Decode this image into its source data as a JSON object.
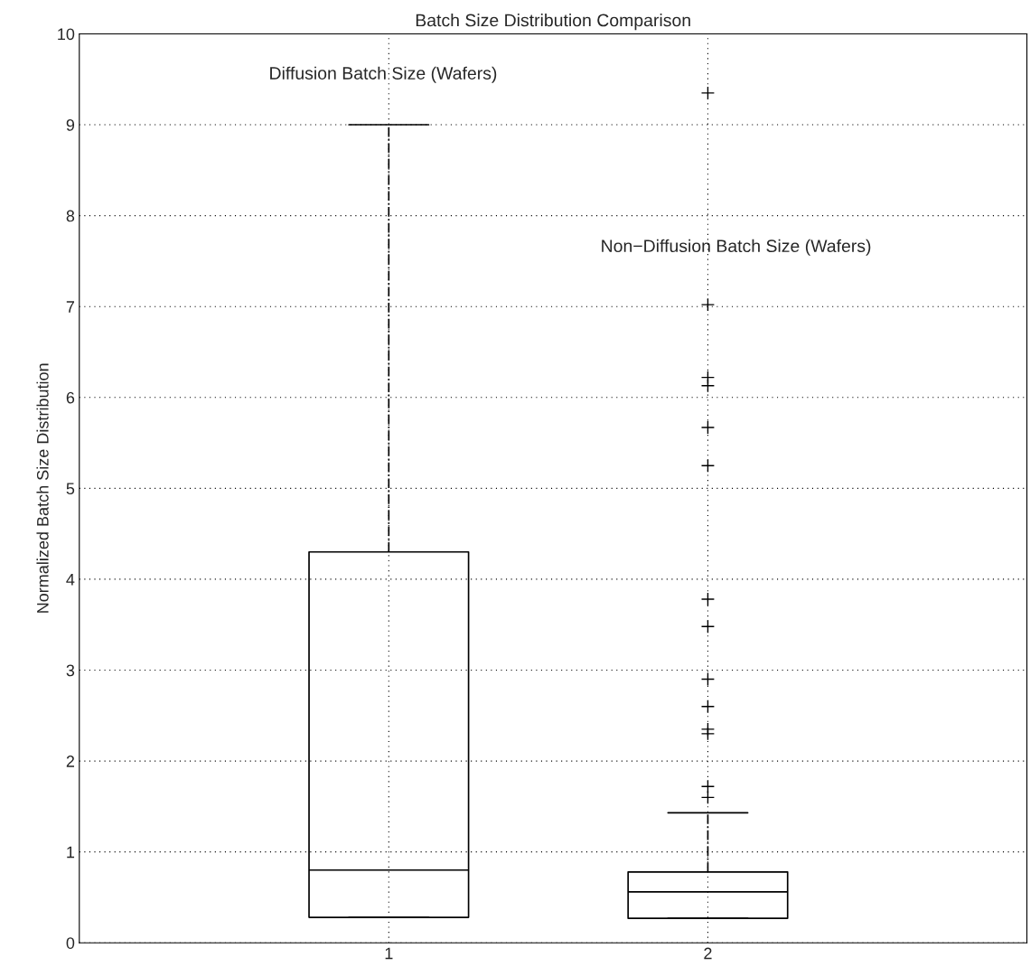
{
  "chart_data": {
    "type": "box",
    "title": "Batch Size Distribution Comparison",
    "ylabel": "Normalized Batch Size Distribution",
    "categories": [
      "1",
      "2"
    ],
    "boxes": [
      {
        "low": 0.28,
        "q1": 0.28,
        "median": 0.8,
        "q3": 4.3,
        "high": 9.0
      },
      {
        "low": 0.27,
        "q1": 0.27,
        "median": 0.56,
        "q3": 0.78,
        "high": 1.43,
        "outliers": [
          9.35,
          7.02,
          6.22,
          6.13,
          5.67,
          5.25,
          3.78,
          3.48,
          2.9,
          2.6,
          2.35,
          2.3,
          1.72,
          1.6
        ]
      }
    ],
    "annotations": [
      "Diffusion Batch Size (Wafers)",
      "Non−Diffusion Batch Size (Wafers)"
    ],
    "ylim": [
      0,
      10
    ],
    "yticks": [
      0,
      1,
      2,
      3,
      4,
      5,
      6,
      7,
      8,
      9,
      10
    ],
    "grid": true,
    "marker": "cross"
  }
}
